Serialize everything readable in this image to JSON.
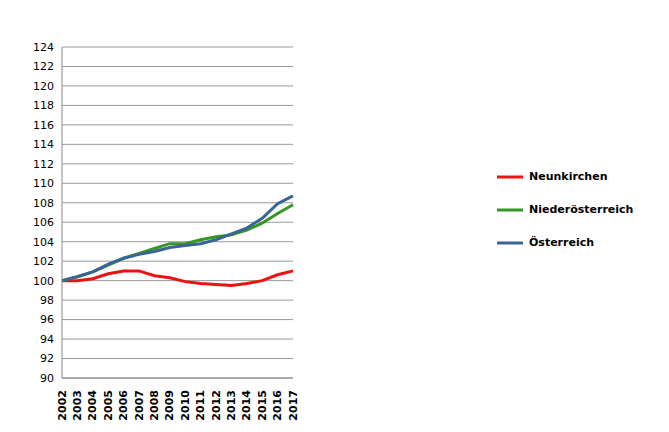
{
  "chart_data": {
    "type": "line",
    "categories": [
      "2002",
      "2003",
      "2004",
      "2005",
      "2006",
      "2007",
      "2008",
      "2009",
      "2010",
      "2011",
      "2012",
      "2013",
      "2014",
      "2015",
      "2016",
      "2017"
    ],
    "series": [
      {
        "name": "Neunkirchen",
        "color": "#ee1111",
        "values": [
          100,
          100.0,
          100.2,
          100.7,
          101.0,
          101.0,
          100.5,
          100.3,
          99.9,
          99.7,
          99.6,
          99.5,
          99.7,
          100.0,
          100.6,
          101.0
        ]
      },
      {
        "name": "Niederösterreich",
        "color": "#339922",
        "values": [
          100,
          100.4,
          100.9,
          101.6,
          102.3,
          102.8,
          103.3,
          103.8,
          103.8,
          104.2,
          104.5,
          104.7,
          105.2,
          105.9,
          106.9,
          107.8
        ]
      },
      {
        "name": "Österreich",
        "color": "#3a6498",
        "values": [
          100,
          100.4,
          100.9,
          101.7,
          102.3,
          102.7,
          103.0,
          103.4,
          103.6,
          103.8,
          104.2,
          104.8,
          105.4,
          106.4,
          107.9,
          108.7
        ]
      }
    ],
    "ylim": [
      90,
      124
    ],
    "yticks": [
      90,
      92,
      94,
      96,
      98,
      100,
      102,
      104,
      106,
      108,
      110,
      112,
      114,
      116,
      118,
      120,
      122,
      124
    ],
    "grid": true,
    "legend": "right"
  }
}
